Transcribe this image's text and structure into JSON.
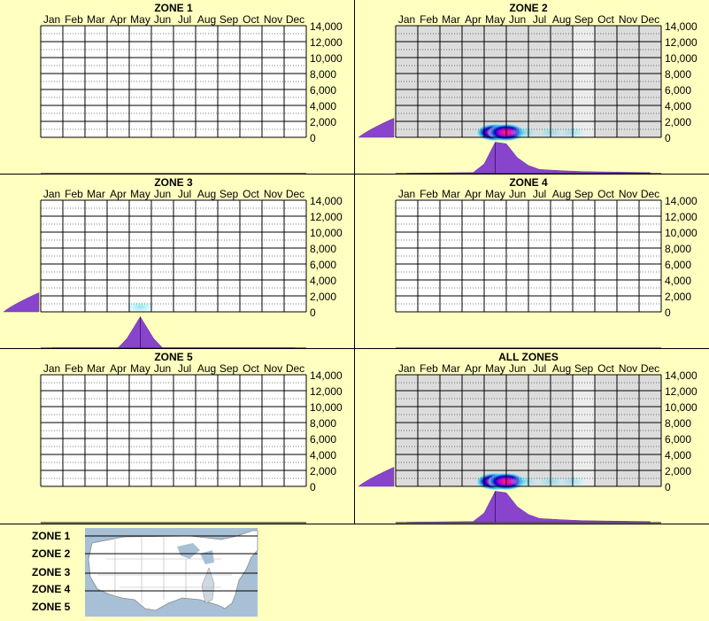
{
  "months": [
    "Jan",
    "Feb",
    "Mar",
    "Apr",
    "May",
    "Jun",
    "Jul",
    "Aug",
    "Sep",
    "Oct",
    "Nov",
    "Dec"
  ],
  "y_ticks": [
    "14,000",
    "12,000",
    "10,000",
    "8,000",
    "6,000",
    "4,000",
    "2,000",
    "0"
  ],
  "colors": {
    "background": "#ffffc0",
    "grid_line": "#000000",
    "active_shade": "#dcdcdc",
    "violet": "#8844cc",
    "hot": "#ff2277",
    "cool": "#66ddee",
    "deep_blue": "#0000cc"
  },
  "chart_data": [
    {
      "type": "heatmap",
      "title": "ZONE 1",
      "x": [
        "Jan",
        "Feb",
        "Mar",
        "Apr",
        "May",
        "Jun",
        "Jul",
        "Aug",
        "Sep",
        "Oct",
        "Nov",
        "Dec"
      ],
      "ylim": [
        0,
        14000
      ],
      "shaded_months": [],
      "hotspots": [],
      "elevation_profile": [],
      "month_profile": []
    },
    {
      "type": "heatmap",
      "title": "ZONE 2",
      "x": [
        "Jan",
        "Feb",
        "Mar",
        "Apr",
        "May",
        "Jun",
        "Jul",
        "Aug",
        "Sep",
        "Oct",
        "Nov",
        "Dec"
      ],
      "ylim": [
        0,
        14000
      ],
      "shaded_months": [
        1,
        2,
        3,
        4,
        5,
        6,
        7,
        8,
        9,
        10,
        11,
        12
      ],
      "light_shaded_months": [
        9
      ],
      "hotspots": [
        {
          "month": 5.0,
          "elev": 500,
          "intensity": 1.0
        },
        {
          "month": 5.5,
          "elev": 500,
          "intensity": 0.9
        },
        {
          "month": 6.3,
          "elev": 500,
          "intensity": 0.35
        },
        {
          "month": 7.5,
          "elev": 500,
          "intensity": 0.2
        },
        {
          "month": 8.5,
          "elev": 500,
          "intensity": 0.18
        }
      ],
      "elevation_profile": [
        [
          0,
          0.2
        ],
        [
          1000,
          0.5
        ],
        [
          2000,
          1.0
        ]
      ],
      "month_profile": [
        [
          1,
          0.0
        ],
        [
          4,
          0.02
        ],
        [
          4.5,
          0.3
        ],
        [
          5.0,
          1.0
        ],
        [
          5.5,
          0.95
        ],
        [
          6.0,
          0.5
        ],
        [
          6.5,
          0.25
        ],
        [
          7,
          0.12
        ],
        [
          8,
          0.08
        ],
        [
          9,
          0.05
        ],
        [
          10,
          0.04
        ],
        [
          11,
          0.03
        ],
        [
          12,
          0.02
        ]
      ]
    },
    {
      "type": "heatmap",
      "title": "ZONE 3",
      "x": [
        "Jan",
        "Feb",
        "Mar",
        "Apr",
        "May",
        "Jun",
        "Jul",
        "Aug",
        "Sep",
        "Oct",
        "Nov",
        "Dec"
      ],
      "ylim": [
        0,
        14000
      ],
      "shaded_months": [],
      "hotspots": [
        {
          "month": 5.0,
          "elev": 500,
          "intensity": 0.35
        }
      ],
      "elevation_profile": [
        [
          0,
          0.2
        ],
        [
          1000,
          0.6
        ],
        [
          2000,
          1.0
        ]
      ],
      "month_profile": [
        [
          1,
          0.0
        ],
        [
          4,
          0.0
        ],
        [
          4.4,
          0.3
        ],
        [
          5.0,
          1.0
        ],
        [
          5.6,
          0.3
        ],
        [
          6,
          0.0
        ],
        [
          12,
          0.0
        ]
      ]
    },
    {
      "type": "heatmap",
      "title": "ZONE 4",
      "x": [
        "Jan",
        "Feb",
        "Mar",
        "Apr",
        "May",
        "Jun",
        "Jul",
        "Aug",
        "Sep",
        "Oct",
        "Nov",
        "Dec"
      ],
      "ylim": [
        0,
        14000
      ],
      "shaded_months": [],
      "hotspots": [],
      "elevation_profile": [],
      "month_profile": []
    },
    {
      "type": "heatmap",
      "title": "ZONE 5",
      "x": [
        "Jan",
        "Feb",
        "Mar",
        "Apr",
        "May",
        "Jun",
        "Jul",
        "Aug",
        "Sep",
        "Oct",
        "Nov",
        "Dec"
      ],
      "ylim": [
        0,
        14000
      ],
      "shaded_months": [],
      "hotspots": [],
      "elevation_profile": [],
      "month_profile": []
    },
    {
      "type": "heatmap",
      "title": "ALL ZONES",
      "x": [
        "Jan",
        "Feb",
        "Mar",
        "Apr",
        "May",
        "Jun",
        "Jul",
        "Aug",
        "Sep",
        "Oct",
        "Nov",
        "Dec"
      ],
      "ylim": [
        0,
        14000
      ],
      "shaded_months": [
        1,
        2,
        3,
        4,
        5,
        6,
        7,
        8,
        9,
        10,
        11,
        12
      ],
      "light_shaded_months": [
        9
      ],
      "hotspots": [
        {
          "month": 5.0,
          "elev": 500,
          "intensity": 1.0
        },
        {
          "month": 5.5,
          "elev": 500,
          "intensity": 0.9
        },
        {
          "month": 6.3,
          "elev": 500,
          "intensity": 0.35
        },
        {
          "month": 7.5,
          "elev": 500,
          "intensity": 0.2
        },
        {
          "month": 8.5,
          "elev": 500,
          "intensity": 0.18
        }
      ],
      "elevation_profile": [
        [
          0,
          0.2
        ],
        [
          1000,
          0.5
        ],
        [
          2000,
          1.0
        ]
      ],
      "month_profile": [
        [
          1,
          0.0
        ],
        [
          4,
          0.02
        ],
        [
          4.5,
          0.3
        ],
        [
          5.0,
          1.0
        ],
        [
          5.5,
          0.95
        ],
        [
          6.0,
          0.5
        ],
        [
          6.5,
          0.25
        ],
        [
          7,
          0.12
        ],
        [
          8,
          0.08
        ],
        [
          9,
          0.05
        ],
        [
          10,
          0.04
        ],
        [
          11,
          0.03
        ],
        [
          12,
          0.02
        ]
      ]
    }
  ],
  "legend": {
    "zones": [
      "ZONE 1",
      "ZONE 2",
      "ZONE 3",
      "ZONE 4",
      "ZONE 5"
    ]
  }
}
